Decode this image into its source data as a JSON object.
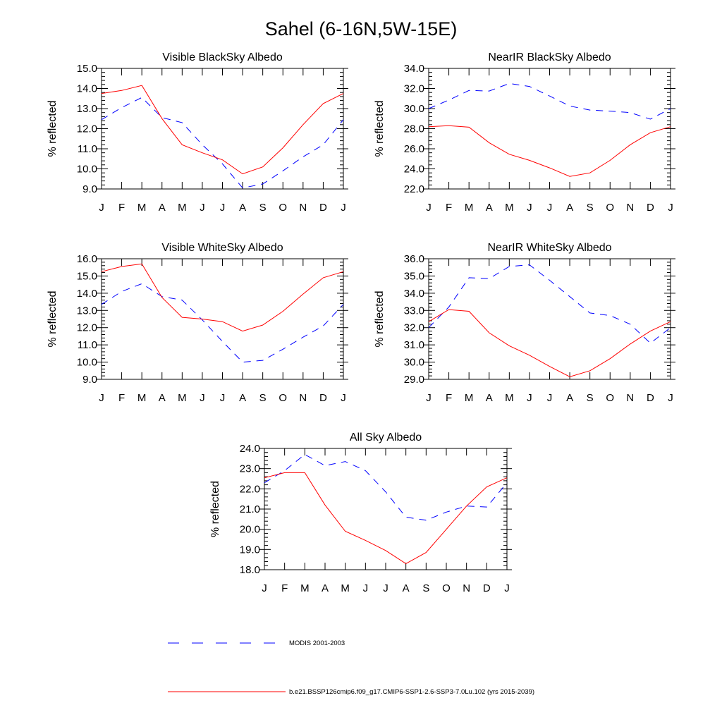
{
  "figure_title": "Sahel (6-16N,5W-15E)",
  "legend": {
    "position": "bottom-center",
    "entries": [
      {
        "label": "MODIS 2001-2003",
        "color": "#0000ff",
        "style": "dashed"
      },
      {
        "label": "b.e21.BSSP126cmip6.f09_g17.CMIP6-SSP1-2.6-SSP3-7.0Lu.102 (yrs 2015-2039)",
        "color": "#ff0000",
        "style": "solid"
      }
    ]
  },
  "chart_data": [
    {
      "type": "line",
      "title": "Visible BlackSky Albedo",
      "ylabel": "% reflected",
      "xlabel": "",
      "categories": [
        "J",
        "F",
        "M",
        "A",
        "M",
        "J",
        "J",
        "A",
        "S",
        "O",
        "N",
        "D",
        "J"
      ],
      "ylim": [
        9.0,
        15.0
      ],
      "yticks": [
        "9.0",
        "10.0",
        "11.0",
        "12.0",
        "13.0",
        "14.0",
        "15.0"
      ],
      "grid": false,
      "series": [
        {
          "values": [
            12.45,
            13.05,
            13.55,
            12.55,
            12.3,
            11.2,
            10.25,
            9.05,
            9.25,
            9.9,
            10.6,
            11.2,
            12.45
          ]
        },
        {
          "values": [
            13.75,
            13.9,
            14.15,
            12.5,
            11.2,
            10.8,
            10.45,
            9.75,
            10.1,
            11.05,
            12.2,
            13.25,
            13.75
          ]
        }
      ]
    },
    {
      "type": "line",
      "title": "NearIR BlackSky Albedo",
      "ylabel": "% reflected",
      "xlabel": "",
      "categories": [
        "J",
        "F",
        "M",
        "A",
        "M",
        "J",
        "J",
        "A",
        "S",
        "O",
        "N",
        "D",
        "J"
      ],
      "ylim": [
        22.0,
        34.0
      ],
      "yticks": [
        "22.0",
        "24.0",
        "26.0",
        "28.0",
        "30.0",
        "32.0",
        "34.0"
      ],
      "grid": false,
      "series": [
        {
          "values": [
            30.0,
            30.85,
            31.8,
            31.75,
            32.5,
            32.2,
            31.25,
            30.25,
            29.85,
            29.75,
            29.6,
            28.95,
            30.0
          ]
        },
        {
          "values": [
            28.2,
            28.3,
            28.15,
            26.6,
            25.45,
            24.85,
            24.1,
            23.25,
            23.6,
            24.85,
            26.4,
            27.6,
            28.2
          ]
        }
      ]
    },
    {
      "type": "line",
      "title": "Visible WhiteSky Albedo",
      "ylabel": "% reflected",
      "xlabel": "",
      "categories": [
        "J",
        "F",
        "M",
        "A",
        "M",
        "J",
        "J",
        "A",
        "S",
        "O",
        "N",
        "D",
        "J"
      ],
      "ylim": [
        9.0,
        16.0
      ],
      "yticks": [
        "9.0",
        "10.0",
        "11.0",
        "12.0",
        "13.0",
        "14.0",
        "15.0",
        "16.0"
      ],
      "grid": false,
      "series": [
        {
          "values": [
            13.35,
            14.1,
            14.55,
            13.8,
            13.6,
            12.45,
            11.2,
            10.0,
            10.1,
            10.75,
            11.45,
            12.1,
            13.35
          ]
        },
        {
          "values": [
            15.25,
            15.55,
            15.7,
            13.75,
            12.6,
            12.5,
            12.35,
            11.8,
            12.15,
            12.95,
            13.95,
            14.9,
            15.25
          ]
        }
      ]
    },
    {
      "type": "line",
      "title": "NearIR WhiteSky Albedo",
      "ylabel": "% reflected",
      "xlabel": "",
      "categories": [
        "J",
        "F",
        "M",
        "A",
        "M",
        "J",
        "J",
        "A",
        "S",
        "O",
        "N",
        "D",
        "J"
      ],
      "ylim": [
        29.0,
        36.0
      ],
      "yticks": [
        "29.0",
        "30.0",
        "31.0",
        "32.0",
        "33.0",
        "34.0",
        "35.0",
        "36.0"
      ],
      "grid": false,
      "series": [
        {
          "values": [
            32.0,
            33.2,
            34.9,
            34.85,
            35.55,
            35.65,
            34.75,
            33.8,
            32.85,
            32.7,
            32.2,
            31.1,
            32.0
          ]
        },
        {
          "values": [
            32.35,
            33.05,
            32.95,
            31.7,
            30.95,
            30.4,
            29.75,
            29.15,
            29.5,
            30.2,
            31.05,
            31.8,
            32.35
          ]
        }
      ]
    },
    {
      "type": "line",
      "title": "All Sky Albedo",
      "ylabel": "% reflected",
      "xlabel": "",
      "categories": [
        "J",
        "F",
        "M",
        "A",
        "M",
        "J",
        "J",
        "A",
        "S",
        "O",
        "N",
        "D",
        "J"
      ],
      "ylim": [
        18.0,
        24.0
      ],
      "yticks": [
        "18.0",
        "19.0",
        "20.0",
        "21.0",
        "22.0",
        "23.0",
        "24.0"
      ],
      "grid": false,
      "series": [
        {
          "values": [
            22.3,
            22.9,
            23.7,
            23.15,
            23.35,
            22.9,
            21.85,
            20.6,
            20.45,
            20.85,
            21.15,
            21.1,
            22.3
          ]
        },
        {
          "values": [
            22.55,
            22.8,
            22.8,
            21.2,
            19.9,
            19.45,
            18.95,
            18.3,
            18.85,
            20.0,
            21.15,
            22.1,
            22.55
          ]
        }
      ]
    }
  ]
}
